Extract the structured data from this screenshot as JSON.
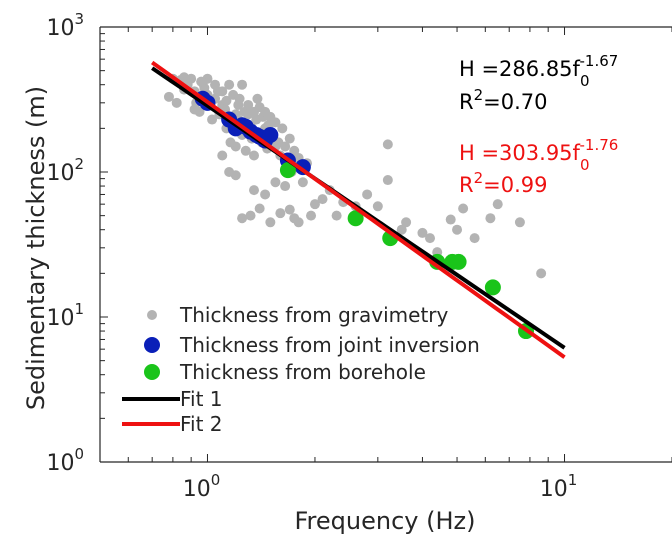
{
  "chart_data": {
    "type": "scatter",
    "xscale": "log",
    "yscale": "log",
    "xlim": [
      0.5,
      20
    ],
    "ylim": [
      1,
      1000
    ],
    "xlabel": "Frequency (Hz)",
    "ylabel": "Sedimentary thickness (m)",
    "x_tick_labels": [
      {
        "value": 1,
        "base": "10",
        "exp": "0"
      },
      {
        "value": 10,
        "base": "10",
        "exp": "1"
      }
    ],
    "y_tick_labels": [
      {
        "value": 1,
        "base": "10",
        "exp": "0"
      },
      {
        "value": 10,
        "base": "10",
        "exp": "1"
      },
      {
        "value": 100,
        "base": "10",
        "exp": "2"
      },
      {
        "value": 1000,
        "base": "10",
        "exp": "3"
      }
    ],
    "legend_position": "bottom-left",
    "series": [
      {
        "name": "Thickness from gravimetry",
        "kind": "points",
        "color": "#b3b3b3",
        "points": [
          [
            0.78,
            330
          ],
          [
            0.8,
            440
          ],
          [
            0.82,
            300
          ],
          [
            0.84,
            430
          ],
          [
            0.86,
            450
          ],
          [
            0.86,
            370
          ],
          [
            0.88,
            400
          ],
          [
            0.9,
            440
          ],
          [
            0.92,
            360
          ],
          [
            0.93,
            300
          ],
          [
            0.95,
            260
          ],
          [
            0.97,
            410
          ],
          [
            0.98,
            380
          ],
          [
            1.0,
            340
          ],
          [
            1.0,
            440
          ],
          [
            1.05,
            320
          ],
          [
            1.08,
            250
          ],
          [
            1.1,
            290
          ],
          [
            1.1,
            360
          ],
          [
            1.12,
            270
          ],
          [
            1.13,
            310
          ],
          [
            1.15,
            400
          ],
          [
            1.15,
            210
          ],
          [
            1.17,
            240
          ],
          [
            1.18,
            340
          ],
          [
            1.2,
            250
          ],
          [
            1.2,
            150
          ],
          [
            1.22,
            230
          ],
          [
            1.22,
            290
          ],
          [
            1.23,
            320
          ],
          [
            1.25,
            400
          ],
          [
            1.25,
            180
          ],
          [
            1.27,
            260
          ],
          [
            1.28,
            140
          ],
          [
            1.28,
            200
          ],
          [
            1.3,
            290
          ],
          [
            1.3,
            250
          ],
          [
            1.32,
            210
          ],
          [
            1.33,
            170
          ],
          [
            1.35,
            260
          ],
          [
            1.35,
            130
          ],
          [
            1.37,
            230
          ],
          [
            1.38,
            320
          ],
          [
            1.4,
            180
          ],
          [
            1.4,
            280
          ],
          [
            1.42,
            160
          ],
          [
            1.43,
            240
          ],
          [
            1.45,
            200
          ],
          [
            1.45,
            260
          ],
          [
            1.47,
            145
          ],
          [
            1.48,
            210
          ],
          [
            1.5,
            170
          ],
          [
            1.5,
            240
          ],
          [
            1.52,
            185
          ],
          [
            1.55,
            150
          ],
          [
            1.55,
            220
          ],
          [
            1.58,
            160
          ],
          [
            1.6,
            130
          ],
          [
            1.62,
            200
          ],
          [
            1.65,
            150
          ],
          [
            1.67,
            120
          ],
          [
            1.7,
            170
          ],
          [
            1.72,
            100
          ],
          [
            1.75,
            140
          ],
          [
            1.8,
            125
          ],
          [
            1.85,
            85
          ],
          [
            1.9,
            115
          ],
          [
            2.0,
            60
          ],
          [
            2.1,
            65
          ],
          [
            2.2,
            75
          ],
          [
            2.4,
            62
          ],
          [
            2.6,
            58
          ],
          [
            2.8,
            70
          ],
          [
            3.0,
            58
          ],
          [
            3.2,
            88
          ],
          [
            3.2,
            155
          ],
          [
            3.5,
            40
          ],
          [
            3.6,
            45
          ],
          [
            4.0,
            38
          ],
          [
            4.2,
            35
          ],
          [
            4.4,
            28
          ],
          [
            4.8,
            47
          ],
          [
            5.0,
            40
          ],
          [
            5.2,
            56
          ],
          [
            5.6,
            35
          ],
          [
            6.2,
            48
          ],
          [
            6.5,
            60
          ],
          [
            7.5,
            45
          ],
          [
            8.6,
            20
          ],
          [
            0.96,
            420
          ],
          [
            1.05,
            400
          ],
          [
            1.16,
            160
          ],
          [
            1.22,
            190
          ],
          [
            1.25,
            48
          ],
          [
            1.32,
            50
          ],
          [
            1.4,
            56
          ],
          [
            1.5,
            45
          ],
          [
            1.6,
            52
          ],
          [
            1.75,
            48
          ],
          [
            1.15,
            100
          ],
          [
            1.2,
            95
          ],
          [
            1.35,
            75
          ],
          [
            1.45,
            70
          ],
          [
            1.55,
            85
          ],
          [
            1.65,
            80
          ],
          [
            1.7,
            55
          ],
          [
            1.8,
            45
          ],
          [
            1.95,
            50
          ],
          [
            2.3,
            50
          ],
          [
            1.1,
            130
          ],
          [
            0.92,
            270
          ],
          [
            1.03,
            230
          ],
          [
            1.13,
            200
          ],
          [
            0.99,
            300
          ],
          [
            1.07,
            360
          ]
        ]
      },
      {
        "name": "Thickness from joint inversion",
        "kind": "points",
        "color": "#0a1fb8",
        "points": [
          [
            0.97,
            320
          ],
          [
            1.0,
            300
          ],
          [
            1.15,
            230
          ],
          [
            1.2,
            200
          ],
          [
            1.25,
            210
          ],
          [
            1.28,
            205
          ],
          [
            1.32,
            190
          ],
          [
            1.37,
            180
          ],
          [
            1.4,
            175
          ],
          [
            1.45,
            165
          ],
          [
            1.5,
            180
          ],
          [
            1.68,
            120
          ],
          [
            1.85,
            108
          ]
        ]
      },
      {
        "name": "Thickness from borehole",
        "kind": "points",
        "color": "#1ac41a",
        "points": [
          [
            1.68,
            103
          ],
          [
            2.6,
            48
          ],
          [
            3.25,
            35
          ],
          [
            4.4,
            24
          ],
          [
            4.85,
            24
          ],
          [
            5.05,
            24
          ],
          [
            6.3,
            16
          ],
          [
            7.8,
            8
          ]
        ]
      },
      {
        "name": "Fit 1",
        "kind": "line",
        "color": "#000000",
        "a": 286.85,
        "b": -1.67,
        "x": [
          0.7,
          10
        ]
      },
      {
        "name": "Fit 2",
        "kind": "line",
        "color": "#ee1111",
        "a": 303.95,
        "b": -1.76,
        "x": [
          0.7,
          10
        ]
      }
    ],
    "annotations": [
      {
        "color": "#000000",
        "eq_prefix": "H =286.85f",
        "eq_sub": "0",
        "eq_sup": "-1.67",
        "r2": "R",
        "r2_sup": "2",
        "r2_val": "=0.70"
      },
      {
        "color": "#ee1111",
        "eq_prefix": "H =303.95f",
        "eq_sub": "0",
        "eq_sup": "-1.76",
        "r2": "R",
        "r2_sup": "2",
        "r2_val": "=0.99"
      }
    ]
  }
}
